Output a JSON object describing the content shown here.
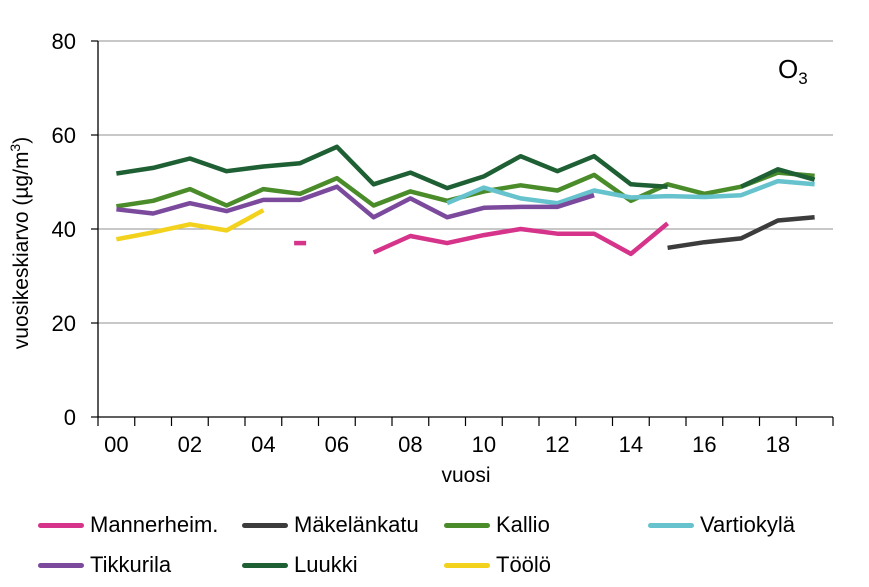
{
  "chart_data": {
    "type": "line",
    "title": "",
    "annotation": {
      "base": "O",
      "sub": "3"
    },
    "xlabel": "vuosi",
    "ylabel": {
      "main": "vuosikeskiarvo (µg/m",
      "sup": "3",
      "end": ")"
    },
    "x": [
      2000,
      2001,
      2002,
      2003,
      2004,
      2005,
      2006,
      2007,
      2008,
      2009,
      2010,
      2011,
      2012,
      2013,
      2014,
      2015,
      2016,
      2017,
      2018,
      2019
    ],
    "x_tick_labels": [
      "00",
      "02",
      "04",
      "06",
      "08",
      "10",
      "12",
      "14",
      "16",
      "18"
    ],
    "x_tick_values": [
      2000,
      2002,
      2004,
      2006,
      2008,
      2010,
      2012,
      2014,
      2016,
      2018
    ],
    "xlim": [
      1999.5,
      2019.5
    ],
    "ylim": [
      0,
      80
    ],
    "y_ticks": [
      0,
      20,
      40,
      60,
      80
    ],
    "grid": "horizontal",
    "legend_position": "bottom",
    "series": [
      {
        "name": "Mannerheim.",
        "color": "#d6338a",
        "values": [
          null,
          null,
          null,
          null,
          null,
          37,
          null,
          35,
          38.5,
          37,
          38.7,
          40,
          39,
          39,
          34.7,
          41.2,
          null,
          null,
          null,
          null
        ]
      },
      {
        "name": "Mäkelänkatu",
        "color": "#3c3c3c",
        "values": [
          null,
          null,
          null,
          null,
          null,
          null,
          null,
          null,
          null,
          null,
          null,
          null,
          null,
          null,
          null,
          36,
          37.2,
          38,
          41.8,
          42.5
        ]
      },
      {
        "name": "Kallio",
        "color": "#4a8b2a",
        "values": [
          44.8,
          46,
          48.5,
          45,
          48.5,
          47.5,
          50.8,
          45,
          48,
          46,
          48,
          49.3,
          48.2,
          51.5,
          46,
          49.5,
          47.5,
          49,
          52,
          51.3
        ]
      },
      {
        "name": "Vartiokylä",
        "color": "#66c2cc",
        "values": [
          null,
          null,
          null,
          null,
          null,
          null,
          null,
          null,
          null,
          45.5,
          48.8,
          46.5,
          45.5,
          48.2,
          46.7,
          47,
          46.8,
          47.2,
          50.2,
          49.5
        ]
      },
      {
        "name": "Tikkurila",
        "color": "#7b4a9c",
        "values": [
          44.2,
          43.3,
          45.5,
          43.8,
          46.2,
          46.2,
          49,
          42.5,
          46.5,
          42.5,
          44.5,
          44.7,
          44.7,
          47.2,
          null,
          null,
          null,
          null,
          null,
          null
        ]
      },
      {
        "name": "Luukki",
        "color": "#1e5f33",
        "values": [
          51.8,
          53,
          55,
          52.3,
          53.3,
          54,
          57.5,
          49.5,
          52,
          48.7,
          51.2,
          55.5,
          52.3,
          55.5,
          49.5,
          49,
          null,
          49,
          52.7,
          50.5
        ]
      },
      {
        "name": "Töölö",
        "color": "#f2d21c",
        "values": [
          37.8,
          39.3,
          41,
          39.7,
          44,
          null,
          null,
          null,
          null,
          null,
          null,
          null,
          null,
          null,
          null,
          null,
          null,
          null,
          null,
          null
        ]
      }
    ]
  }
}
